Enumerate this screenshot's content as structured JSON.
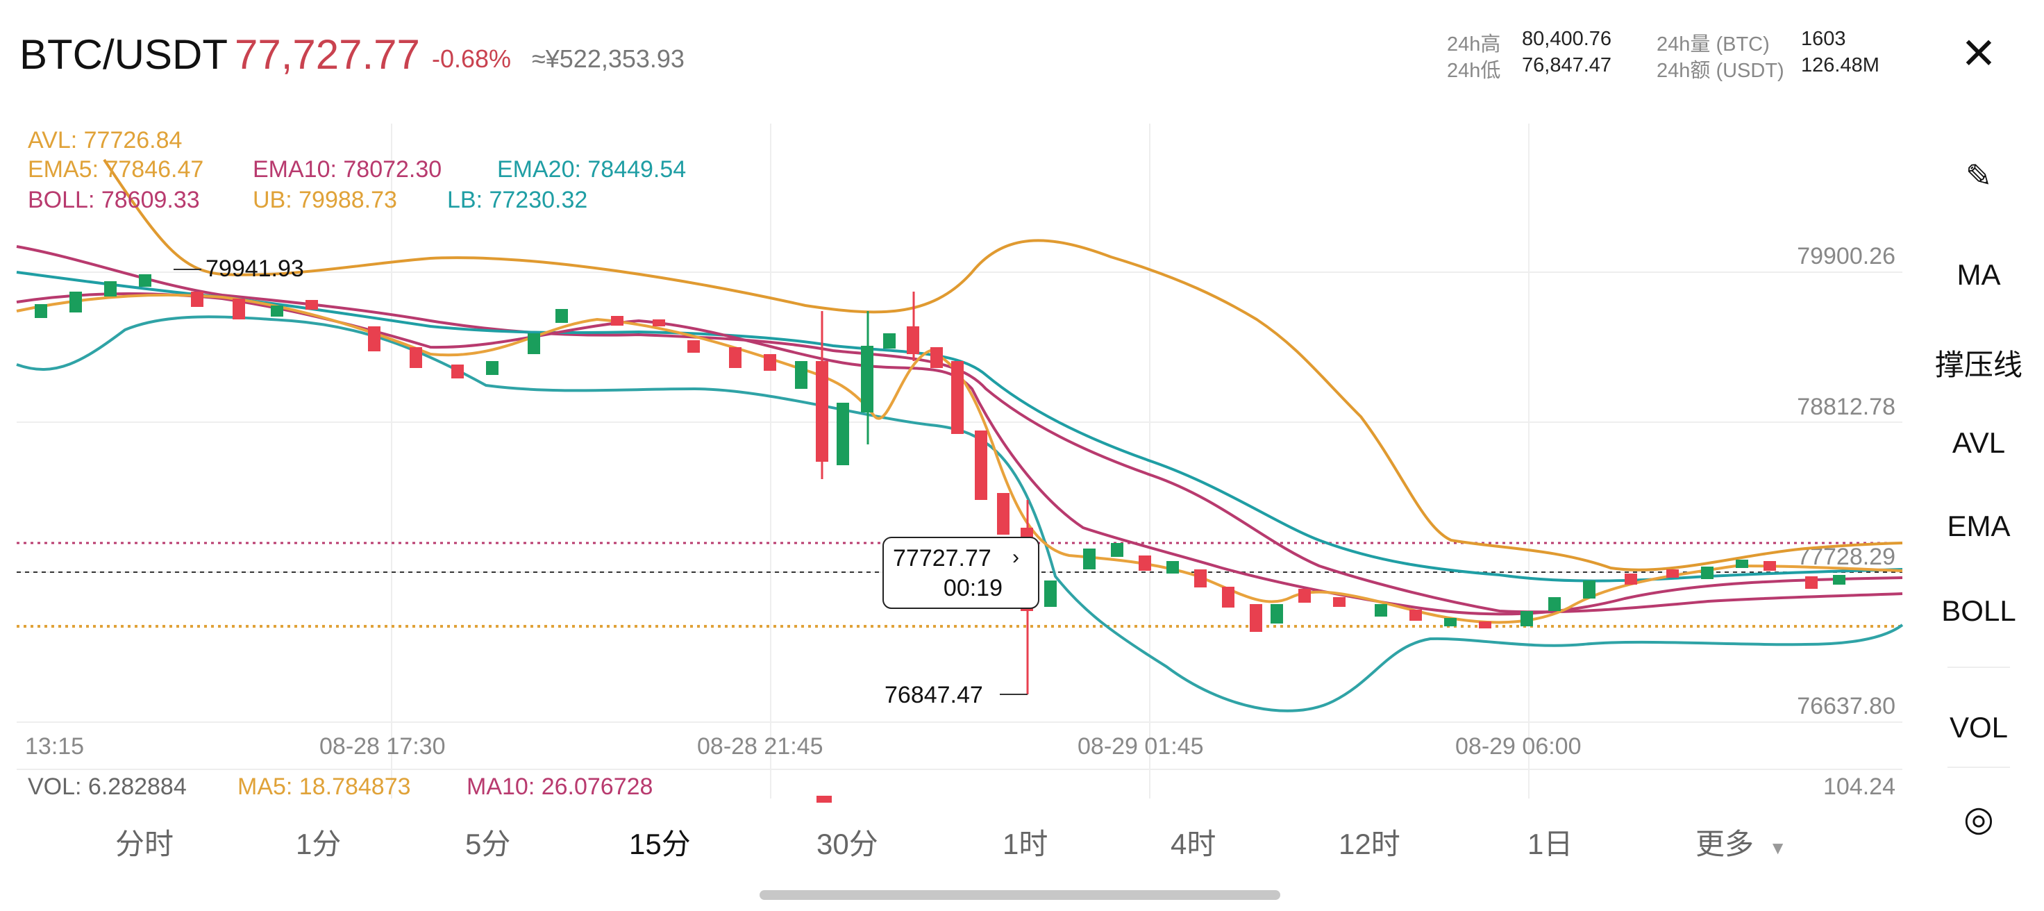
{
  "header": {
    "pair": "BTC/USDT",
    "price": "77,727.77",
    "change": "-0.68%",
    "cny": "≈¥522,353.93",
    "stats": {
      "high_label": "24h高",
      "high_value": "80,400.76",
      "low_label": "24h低",
      "low_value": "76,847.47",
      "vol_btc_label": "24h量 (BTC)",
      "vol_btc_value": "1603",
      "vol_usdt_label": "24h额 (USDT)",
      "vol_usdt_value": "126.48M"
    },
    "close_icon": "close-icon"
  },
  "indicators": {
    "avl": "AVL: 77726.84",
    "ema5": "EMA5: 77846.47",
    "ema10": "EMA10: 78072.30",
    "ema20": "EMA20: 78449.54",
    "boll": "BOLL: 78609.33",
    "ub": "UB: 79988.73",
    "lb": "LB: 77230.32"
  },
  "chart": {
    "price_labels": [
      "79900.26",
      "78812.78",
      "77728.29",
      "76637.80"
    ],
    "time_labels": [
      "13:15",
      "08-28 17:30",
      "08-28 21:45",
      "08-29 01:45",
      "08-29 06:00"
    ],
    "max_label": "79941.93",
    "min_label": "76847.47",
    "current_price": "77727.77",
    "countdown": "00:19"
  },
  "volume": {
    "vol": "VOL: 6.282884",
    "ma5": "MA5: 18.784873",
    "ma10": "MA10: 26.076728",
    "max": "104.24"
  },
  "colors": {
    "up": "#1a9e5c",
    "down": "#e8404f",
    "ema5": "#e8a23c",
    "ema10": "#b83a6e",
    "ema20": "#1f9ea4",
    "boll": "#b83a6e",
    "ub": "#e09a30",
    "lb": "#2fa3a6"
  },
  "sidebar": {
    "draw_icon": "pen-icon",
    "items": [
      "MA",
      "撑压线",
      "AVL",
      "EMA",
      "BOLL",
      "VOL"
    ],
    "settings_icon": "target-icon"
  },
  "timeframes": [
    "分时",
    "1分",
    "5分",
    "15分",
    "30分",
    "1时",
    "4时",
    "12时",
    "1日",
    "更多"
  ],
  "active_timeframe": "15分"
}
